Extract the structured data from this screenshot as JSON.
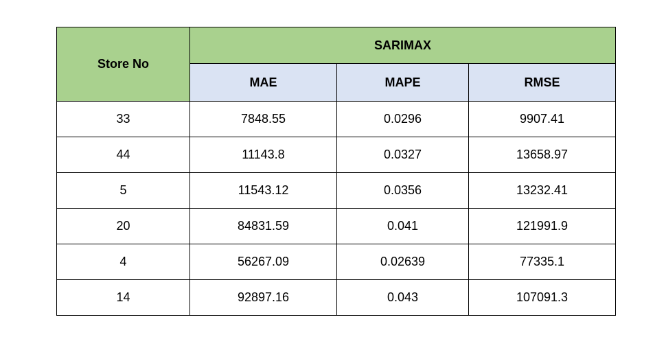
{
  "table": {
    "header": {
      "store_label": "Store No",
      "group_label": "SARIMAX",
      "metrics": [
        "MAE",
        "MAPE",
        "RMSE"
      ]
    },
    "rows": [
      {
        "store": "33",
        "mae": "7848.55",
        "mape": "0.0296",
        "rmse": "9907.41"
      },
      {
        "store": "44",
        "mae": "11143.8",
        "mape": "0.0327",
        "rmse": "13658.97"
      },
      {
        "store": "5",
        "mae": "11543.12",
        "mape": "0.0356",
        "rmse": "13232.41"
      },
      {
        "store": "20",
        "mae": "84831.59",
        "mape": "0.041",
        "rmse": "121991.9"
      },
      {
        "store": "4",
        "mae": "56267.09",
        "mape": "0.02639",
        "rmse": "77335.1"
      },
      {
        "store": "14",
        "mae": "92897.16",
        "mape": "0.043",
        "rmse": "107091.3"
      }
    ]
  },
  "colors": {
    "header_green": "#a9d18e",
    "header_blue": "#dae3f3",
    "border": "#000000"
  }
}
